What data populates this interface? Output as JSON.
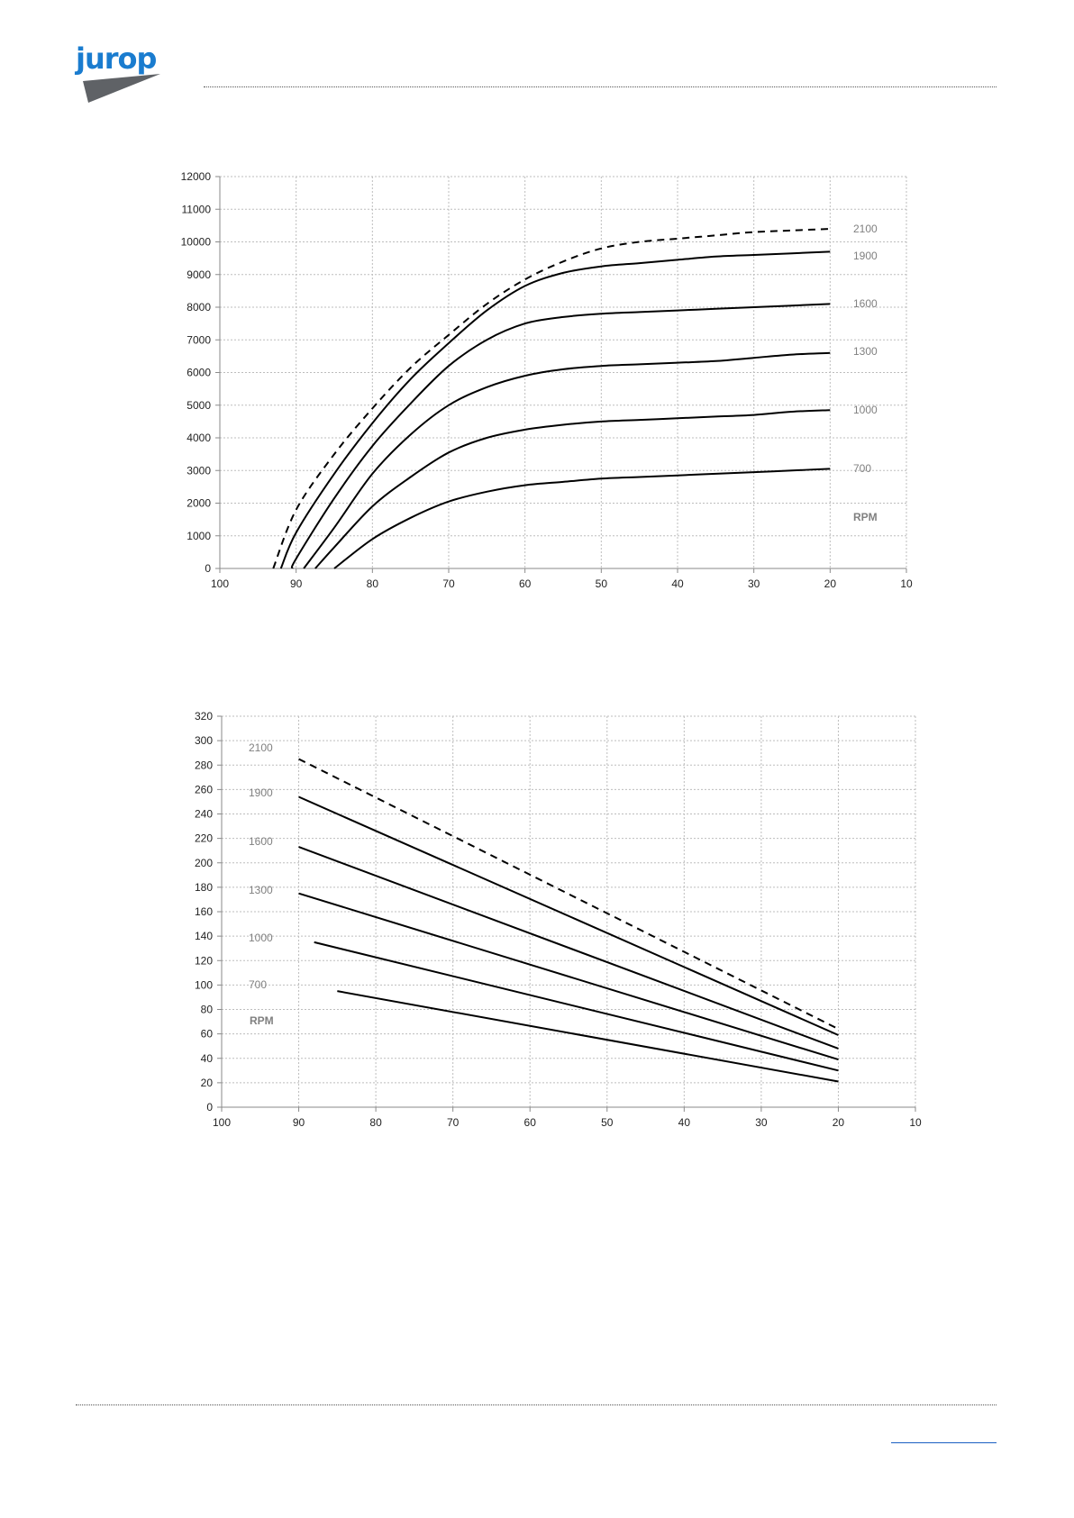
{
  "brand": {
    "logo_text": "jurop",
    "logo_color": "#1a7ccf",
    "wedge_color": "#5f6266"
  },
  "colors": {
    "curve": "#000000",
    "grid": "#bdbdbd",
    "axis_text": "#222222",
    "label_text": "#808080",
    "footer_link": "#1a5fc2"
  },
  "chart_data": [
    {
      "type": "line",
      "title": "",
      "xlabel": "",
      "ylabel": "",
      "xlim": [
        100,
        10
      ],
      "ylim": [
        0,
        12000
      ],
      "x_ticks": [
        100,
        90,
        80,
        70,
        60,
        50,
        40,
        30,
        20,
        10
      ],
      "y_ticks": [
        0,
        1000,
        2000,
        3000,
        4000,
        5000,
        6000,
        7000,
        8000,
        9000,
        10000,
        11000,
        12000
      ],
      "grid": true,
      "legend": "series labels at right end of curves",
      "unit_label": "RPM",
      "series": [
        {
          "name": "2100",
          "dashed": true,
          "x": [
            93,
            90,
            85,
            80,
            75,
            70,
            65,
            60,
            55,
            50,
            45,
            40,
            35,
            30,
            25,
            20
          ],
          "y": [
            0,
            1800,
            3500,
            4900,
            6150,
            7150,
            8100,
            8850,
            9400,
            9800,
            10000,
            10100,
            10200,
            10300,
            10350,
            10400
          ]
        },
        {
          "name": "1900",
          "dashed": false,
          "x": [
            92,
            90,
            85,
            80,
            75,
            70,
            65,
            60,
            55,
            50,
            45,
            40,
            35,
            30,
            25,
            20
          ],
          "y": [
            0,
            1100,
            2900,
            4450,
            5800,
            6900,
            7900,
            8650,
            9050,
            9250,
            9350,
            9450,
            9550,
            9600,
            9650,
            9700
          ]
        },
        {
          "name": "1600",
          "dashed": false,
          "x": [
            90.5,
            90,
            85,
            80,
            75,
            70,
            65,
            60,
            55,
            50,
            45,
            40,
            35,
            30,
            25,
            20
          ],
          "y": [
            0,
            300,
            2150,
            3750,
            5050,
            6200,
            7000,
            7500,
            7700,
            7800,
            7850,
            7900,
            7950,
            8000,
            8050,
            8100
          ]
        },
        {
          "name": "1300",
          "dashed": false,
          "x": [
            89,
            85,
            80,
            75,
            70,
            65,
            60,
            55,
            50,
            45,
            40,
            35,
            30,
            25,
            20
          ],
          "y": [
            0,
            1250,
            2900,
            4100,
            5000,
            5550,
            5900,
            6100,
            6200,
            6250,
            6300,
            6350,
            6450,
            6550,
            6600
          ]
        },
        {
          "name": "1000",
          "dashed": false,
          "x": [
            87.5,
            85,
            80,
            75,
            70,
            65,
            60,
            55,
            50,
            45,
            40,
            35,
            30,
            25,
            20
          ],
          "y": [
            0,
            650,
            1900,
            2800,
            3550,
            4000,
            4250,
            4400,
            4500,
            4550,
            4600,
            4650,
            4700,
            4800,
            4850
          ]
        },
        {
          "name": "700",
          "dashed": false,
          "x": [
            85,
            80,
            75,
            70,
            65,
            60,
            55,
            50,
            45,
            40,
            35,
            30,
            25,
            20
          ],
          "y": [
            0,
            900,
            1550,
            2050,
            2350,
            2550,
            2650,
            2750,
            2800,
            2850,
            2900,
            2950,
            3000,
            3050
          ]
        }
      ]
    },
    {
      "type": "line",
      "title": "",
      "xlabel": "",
      "ylabel": "",
      "xlim": [
        100,
        10
      ],
      "ylim": [
        0,
        320
      ],
      "x_ticks": [
        100,
        90,
        80,
        70,
        60,
        50,
        40,
        30,
        20,
        10
      ],
      "y_ticks": [
        0,
        20,
        40,
        60,
        80,
        100,
        120,
        140,
        160,
        180,
        200,
        220,
        240,
        260,
        280,
        300,
        320
      ],
      "grid": true,
      "legend": "series labels at left of curves",
      "unit_label": "RPM",
      "series": [
        {
          "name": "2100",
          "dashed": true,
          "x": [
            90,
            20
          ],
          "y": [
            285,
            64
          ]
        },
        {
          "name": "1900",
          "dashed": false,
          "x": [
            90,
            20
          ],
          "y": [
            254,
            59
          ]
        },
        {
          "name": "1600",
          "dashed": false,
          "x": [
            90,
            20
          ],
          "y": [
            213,
            48
          ]
        },
        {
          "name": "1300",
          "dashed": false,
          "x": [
            90,
            20
          ],
          "y": [
            175,
            39
          ]
        },
        {
          "name": "1000",
          "dashed": false,
          "x": [
            88,
            20
          ],
          "y": [
            135,
            30
          ]
        },
        {
          "name": "700",
          "dashed": false,
          "x": [
            85,
            20
          ],
          "y": [
            95,
            21
          ]
        }
      ]
    }
  ]
}
